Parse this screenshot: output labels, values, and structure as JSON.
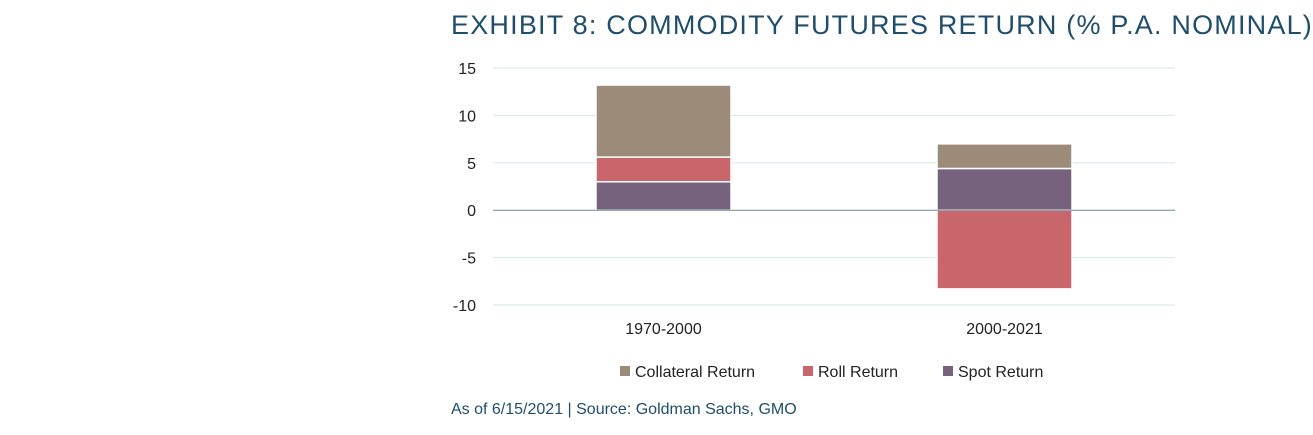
{
  "title": "EXHIBIT 8: COMMODITY FUTURES RETURN (% P.A. NOMINAL)",
  "source": "As of 6/15/2021 | Source: Goldman Sachs, GMO",
  "chart_data": {
    "type": "bar",
    "stacked": true,
    "title": "EXHIBIT 8: COMMODITY FUTURES RETURN (% P.A. NOMINAL)",
    "xlabel": "",
    "ylabel": "",
    "categories": [
      "1970-2000",
      "2000-2021"
    ],
    "ylim": [
      -10,
      15
    ],
    "yticks": [
      15,
      10,
      5,
      0,
      -5,
      -10
    ],
    "grid": true,
    "legend_position": "bottom",
    "series": [
      {
        "name": "Collateral Return",
        "color": "#9c8b78",
        "values": [
          7.6,
          2.6
        ]
      },
      {
        "name": "Roll Return",
        "color": "#c9666b",
        "values": [
          2.6,
          -8.3
        ]
      },
      {
        "name": "Spot Return",
        "color": "#76627d",
        "values": [
          3.0,
          4.4
        ]
      }
    ],
    "stack_order": [
      "Spot Return",
      "Roll Return",
      "Collateral Return"
    ]
  }
}
